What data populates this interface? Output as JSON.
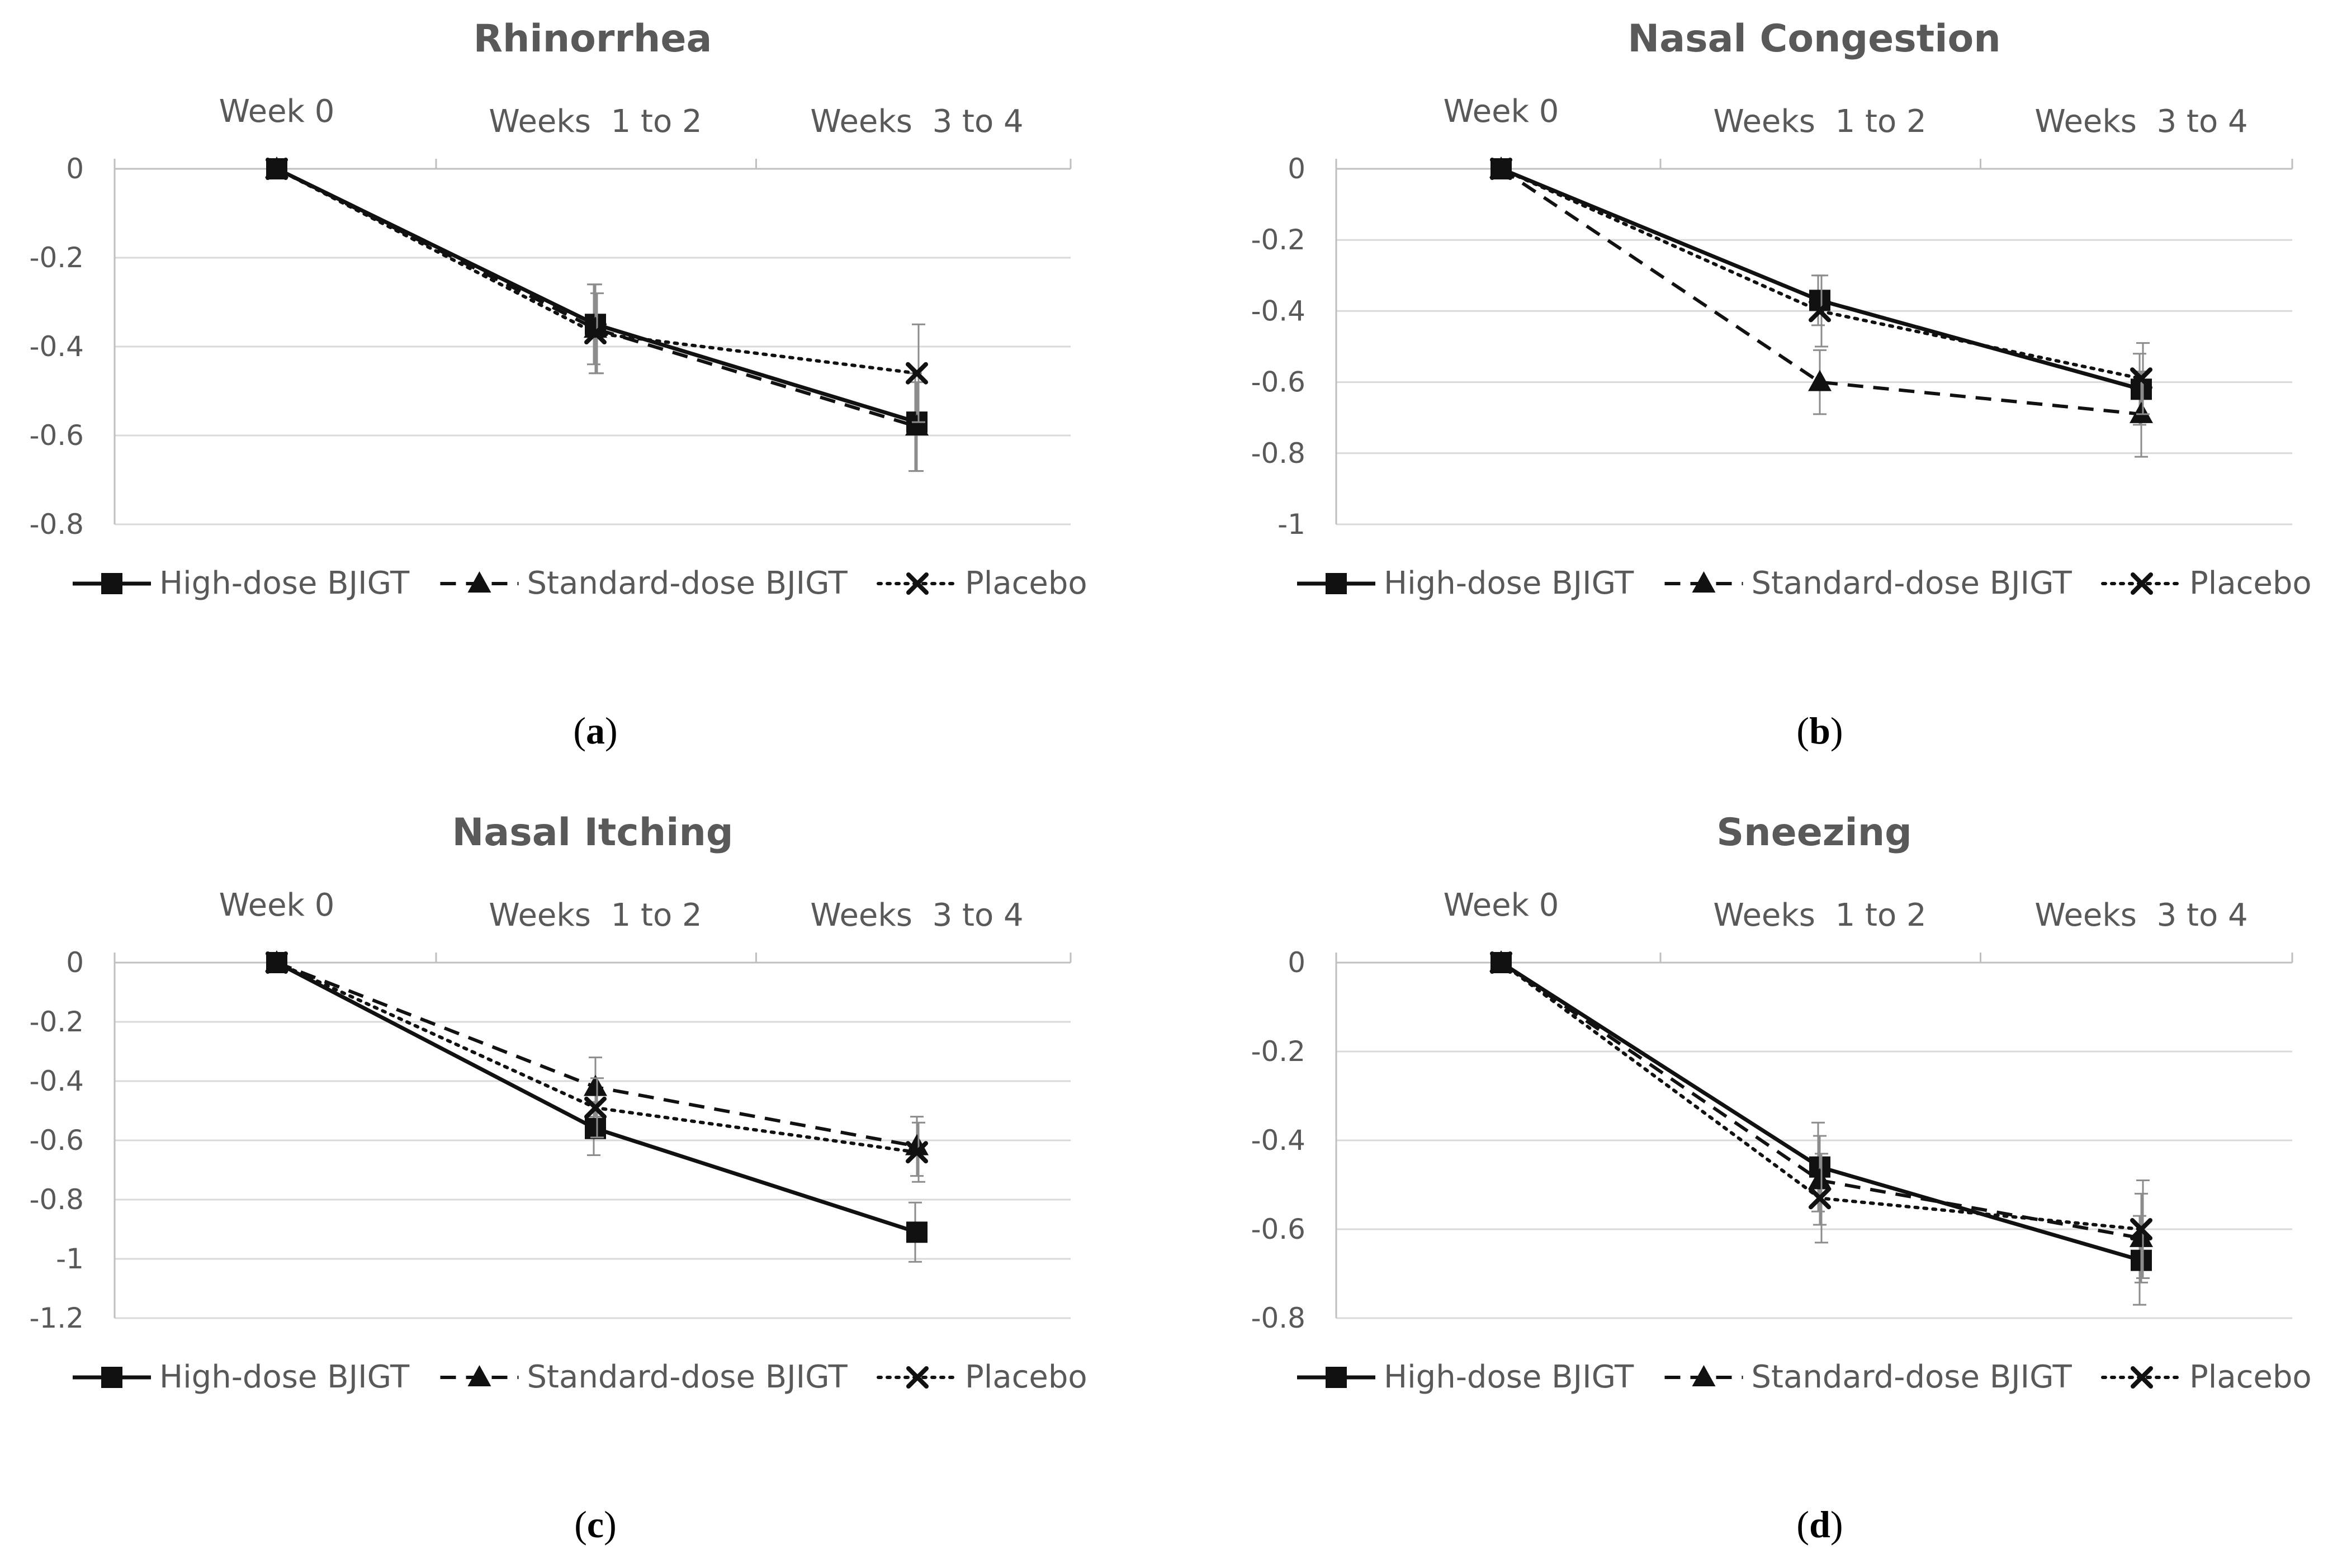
{
  "figure": {
    "panels": [
      {
        "id": "a",
        "caption_letter": "a",
        "title": "Rhinorrhea"
      },
      {
        "id": "b",
        "caption_letter": "b",
        "title": "Nasal Congestion"
      },
      {
        "id": "c",
        "caption_letter": "c",
        "title": "Nasal Itching"
      },
      {
        "id": "d",
        "caption_letter": "d",
        "title": "Sneezing"
      }
    ]
  },
  "chart_data": [
    {
      "type": "line",
      "title": "Rhinorrhea",
      "categories": [
        "Week 0",
        "Weeks  1 to 2",
        "Weeks  3 to 4"
      ],
      "xaxis_position": "top",
      "ylim": [
        -0.8,
        0
      ],
      "yticks": [
        "0",
        "-0.2",
        "-0.4",
        "-0.6",
        "-0.8"
      ],
      "ytick_values": [
        0,
        -0.2,
        -0.4,
        -0.6,
        -0.8
      ],
      "grid": true,
      "legend_position": "bottom",
      "series": [
        {
          "name": "High-dose BJIGT",
          "marker": "square",
          "line": "solid",
          "values": [
            0,
            -0.35,
            -0.57
          ],
          "error": [
            0,
            0.09,
            0.11
          ]
        },
        {
          "name": "Standard-dose BJIGT",
          "marker": "triangle",
          "line": "dashed",
          "values": [
            0,
            -0.36,
            -0.58
          ],
          "error": [
            0,
            0.1,
            0.1
          ]
        },
        {
          "name": "Placebo",
          "marker": "x",
          "line": "dotted",
          "values": [
            0,
            -0.37,
            -0.46
          ],
          "error": [
            0,
            0.09,
            0.11
          ]
        }
      ]
    },
    {
      "type": "line",
      "title": "Nasal Congestion",
      "categories": [
        "Week 0",
        "Weeks  1 to 2",
        "Weeks  3 to 4"
      ],
      "xaxis_position": "top",
      "ylim": [
        -1,
        0
      ],
      "yticks": [
        "0",
        "-0.2",
        "-0.4",
        "-0.6",
        "-0.8",
        "-1"
      ],
      "ytick_values": [
        0,
        -0.2,
        -0.4,
        -0.6,
        -0.8,
        -1
      ],
      "grid": true,
      "legend_position": "bottom",
      "series": [
        {
          "name": "High-dose BJIGT",
          "marker": "square",
          "line": "solid",
          "values": [
            0,
            -0.37,
            -0.62
          ],
          "error": [
            0,
            0.07,
            0.1
          ]
        },
        {
          "name": "Standard-dose BJIGT",
          "marker": "triangle",
          "line": "dashed",
          "values": [
            0,
            -0.6,
            -0.69
          ],
          "error": [
            0,
            0.09,
            0.12
          ]
        },
        {
          "name": "Placebo",
          "marker": "x",
          "line": "dotted",
          "values": [
            0,
            -0.4,
            -0.59
          ],
          "error": [
            0,
            0.1,
            0.1
          ]
        }
      ]
    },
    {
      "type": "line",
      "title": "Nasal Itching",
      "categories": [
        "Week 0",
        "Weeks  1 to 2",
        "Weeks  3 to 4"
      ],
      "xaxis_position": "top",
      "ylim": [
        -1.2,
        0
      ],
      "yticks": [
        "0",
        "-0.2",
        "-0.4",
        "-0.6",
        "-0.8",
        "-1",
        "-1.2"
      ],
      "ytick_values": [
        0,
        -0.2,
        -0.4,
        -0.6,
        -0.8,
        -1,
        -1.2
      ],
      "grid": true,
      "legend_position": "bottom",
      "series": [
        {
          "name": "High-dose BJIGT",
          "marker": "square",
          "line": "solid",
          "values": [
            0,
            -0.56,
            -0.91
          ],
          "error": [
            0,
            0.09,
            0.1
          ]
        },
        {
          "name": "Standard-dose BJIGT",
          "marker": "triangle",
          "line": "dashed",
          "values": [
            0,
            -0.42,
            -0.62
          ],
          "error": [
            0,
            0.1,
            0.1
          ]
        },
        {
          "name": "Placebo",
          "marker": "x",
          "line": "dotted",
          "values": [
            0,
            -0.49,
            -0.64
          ],
          "error": [
            0,
            0.1,
            0.1
          ]
        }
      ]
    },
    {
      "type": "line",
      "title": "Sneezing",
      "categories": [
        "Week 0",
        "Weeks  1 to 2",
        "Weeks  3 to 4"
      ],
      "xaxis_position": "top",
      "ylim": [
        -0.8,
        0
      ],
      "yticks": [
        "0",
        "-0.2",
        "-0.4",
        "-0.6",
        "-0.8"
      ],
      "ytick_values": [
        0,
        -0.2,
        -0.4,
        -0.6,
        -0.8
      ],
      "grid": true,
      "legend_position": "bottom",
      "series": [
        {
          "name": "High-dose BJIGT",
          "marker": "square",
          "line": "solid",
          "values": [
            0,
            -0.46,
            -0.67
          ],
          "error": [
            0,
            0.1,
            0.1
          ]
        },
        {
          "name": "Standard-dose BJIGT",
          "marker": "triangle",
          "line": "dashed",
          "values": [
            0,
            -0.49,
            -0.62
          ],
          "error": [
            0,
            0.1,
            0.1
          ]
        },
        {
          "name": "Placebo",
          "marker": "x",
          "line": "dotted",
          "values": [
            0,
            -0.53,
            -0.6
          ],
          "error": [
            0,
            0.1,
            0.11
          ]
        }
      ]
    }
  ]
}
